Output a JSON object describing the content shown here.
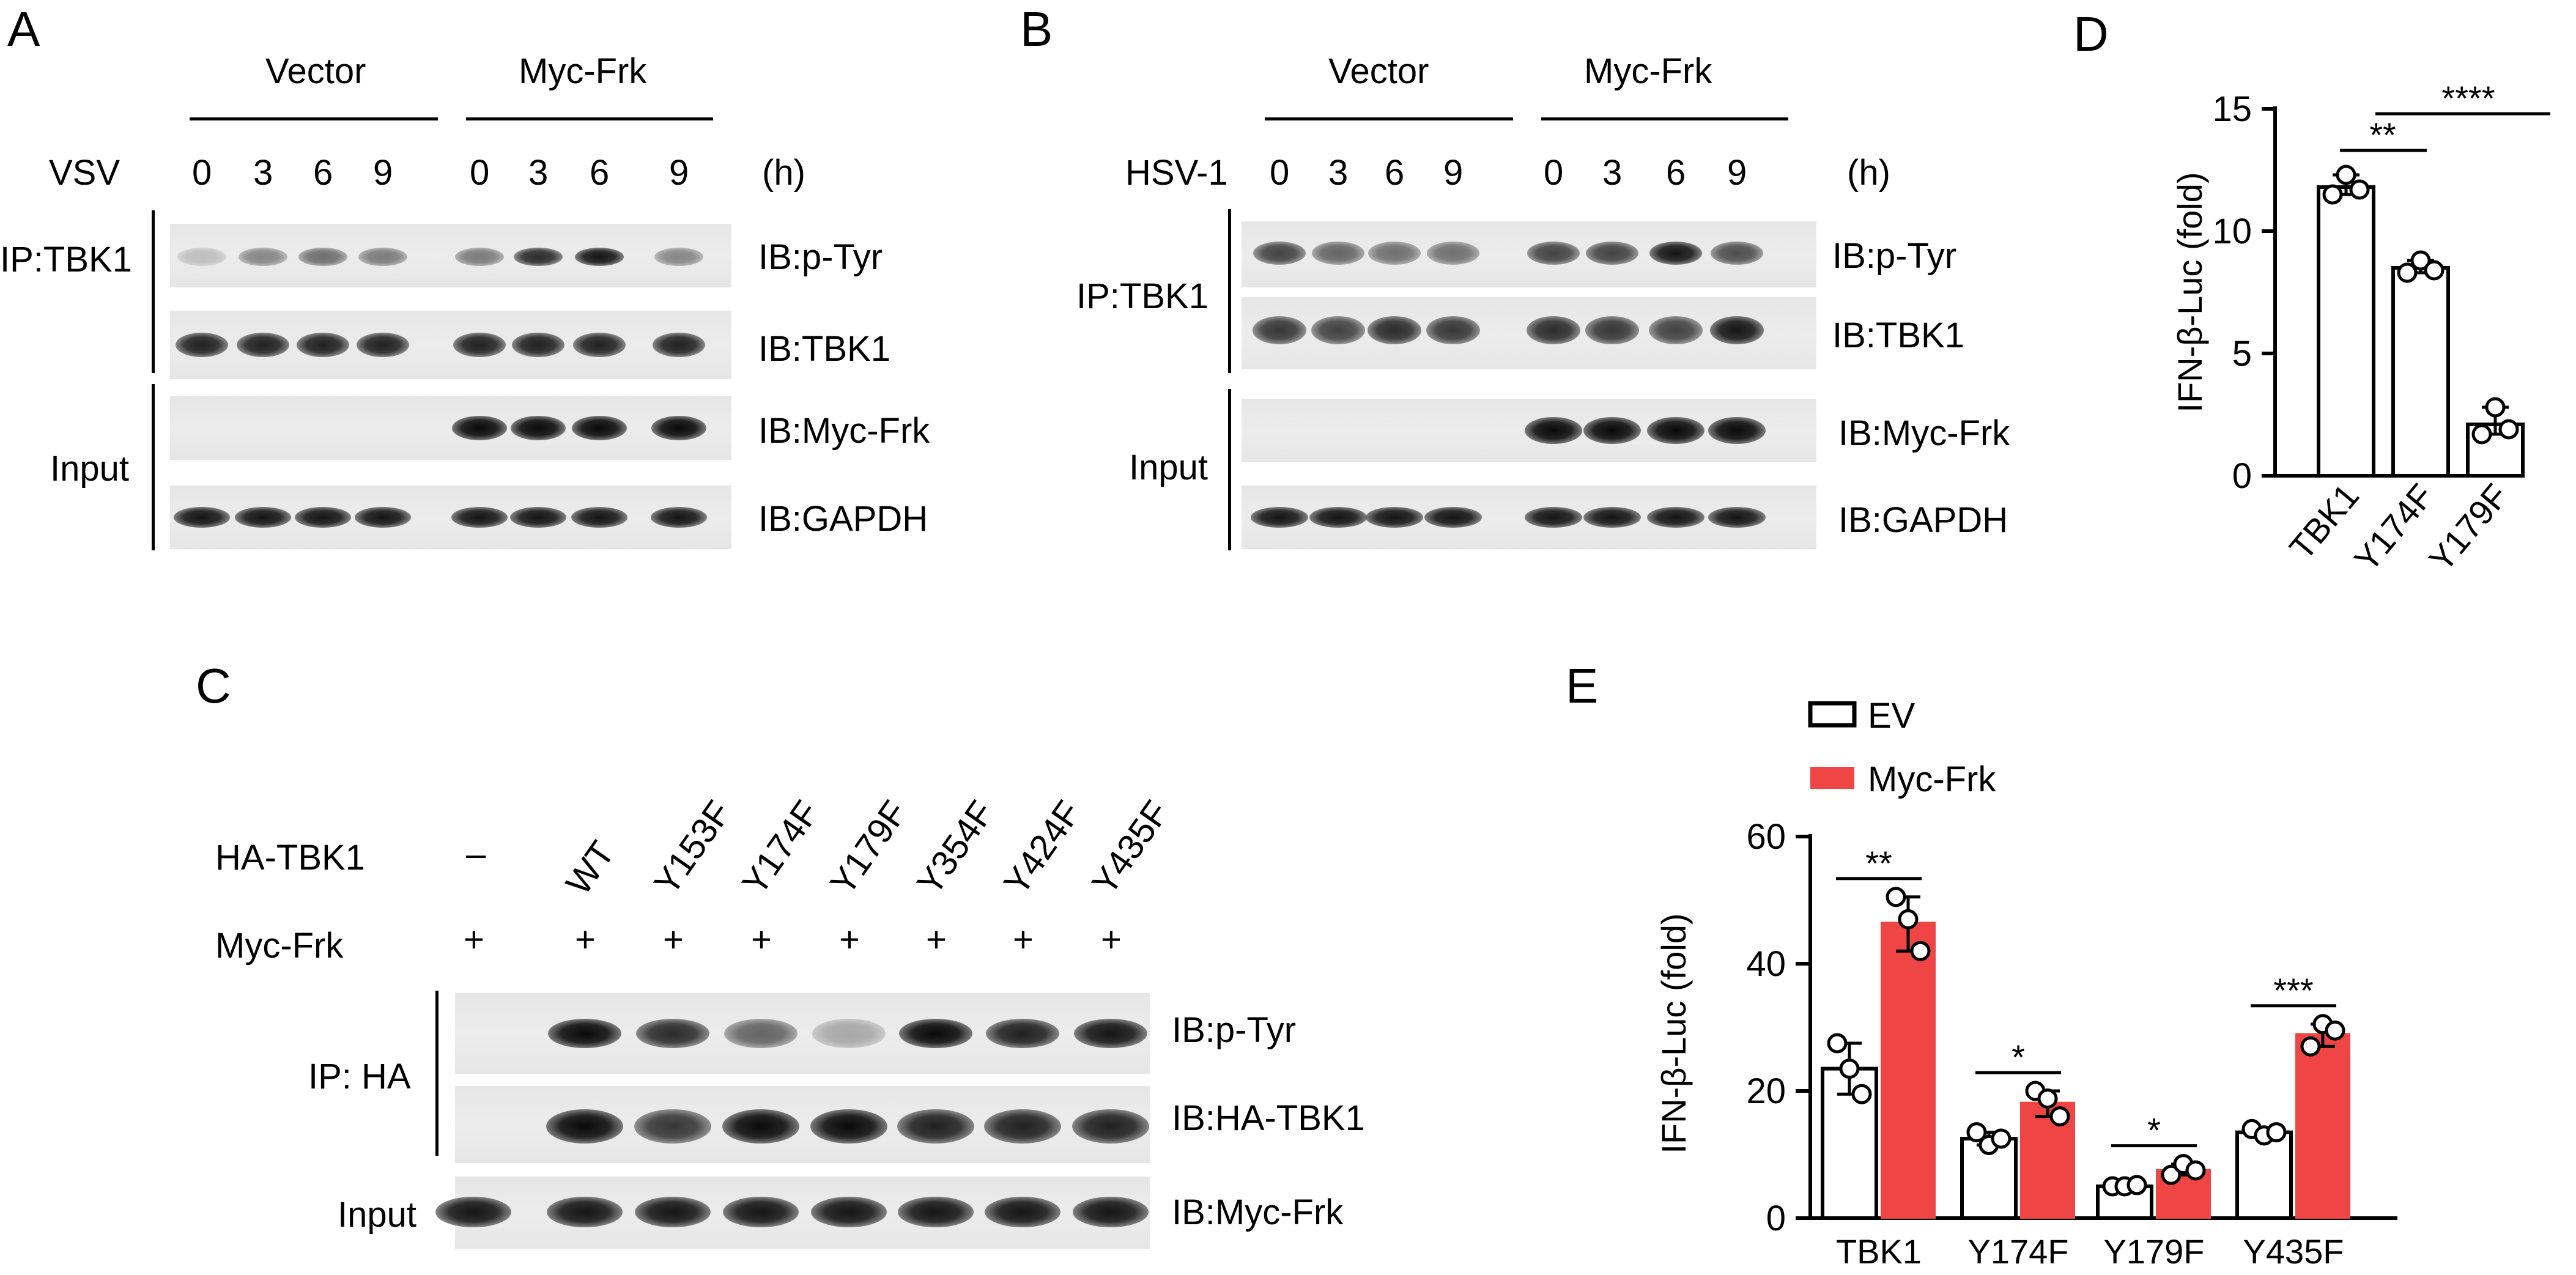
{
  "panels": {
    "A": "A",
    "B": "B",
    "C": "C",
    "D": "D",
    "E": "E"
  },
  "panelA": {
    "group_vector": "Vector",
    "group_myc": "Myc-Frk",
    "infection": "VSV",
    "times": [
      "0",
      "3",
      "6",
      "9",
      "0",
      "3",
      "6",
      "9"
    ],
    "unit": "(h)",
    "ip_label": "IP:TBK1",
    "input_label": "Input",
    "blots": [
      "IB:p-Tyr",
      "IB:TBK1",
      "IB:Myc-Frk",
      "IB:GAPDH"
    ]
  },
  "panelB": {
    "group_vector": "Vector",
    "group_myc": "Myc-Frk",
    "infection": "HSV-1",
    "times": [
      "0",
      "3",
      "6",
      "9",
      "0",
      "3",
      "6",
      "9"
    ],
    "unit": "(h)",
    "ip_label": "IP:TBK1",
    "input_label": "Input",
    "blots": [
      "IB:p-Tyr",
      "IB:TBK1",
      "IB:Myc-Frk",
      "IB:GAPDH"
    ]
  },
  "panelC": {
    "row1_label": "HA-TBK1",
    "row2_label": "Myc-Frk",
    "lanes": [
      "–",
      "WT",
      "Y153F",
      "Y174F",
      "Y179F",
      "Y354F",
      "Y424F",
      "Y435F"
    ],
    "myc_signs": [
      "+",
      "+",
      "+",
      "+",
      "+",
      "+",
      "+",
      "+"
    ],
    "ip_label": "IP: HA",
    "input_label": "Input",
    "blots": [
      "IB:p-Tyr",
      "IB:HA-TBK1",
      "IB:Myc-Frk"
    ]
  },
  "chart_data": [
    {
      "type": "bar",
      "panel": "D",
      "categories": [
        "TBK1",
        "Y174F",
        "Y179F"
      ],
      "values": [
        11.8,
        8.5,
        2.1
      ],
      "points": [
        [
          11.5,
          12.3,
          11.7
        ],
        [
          8.3,
          8.8,
          8.4
        ],
        [
          1.7,
          2.8,
          1.9
        ]
      ],
      "ylabel": "IFN-β-Luc (fold)",
      "ylim": [
        0,
        15
      ],
      "yticks": [
        0,
        5,
        10,
        15
      ],
      "significance": [
        {
          "pair": [
            "TBK1",
            "Y174F"
          ],
          "label": "**"
        },
        {
          "pair": [
            "TBK1",
            "Y179F"
          ],
          "label": "****"
        }
      ]
    },
    {
      "type": "bar",
      "panel": "E",
      "categories": [
        "TBK1",
        "Y174F",
        "Y179F",
        "Y435F"
      ],
      "series": [
        {
          "name": "EV",
          "values": [
            23.5,
            12.5,
            5.0,
            13.5
          ],
          "points": [
            [
              27.5,
              23.5,
              19.5
            ],
            [
              13.5,
              11.5,
              12.5
            ],
            [
              5.0,
              5.0,
              5.2
            ],
            [
              14.0,
              13.0,
              13.5
            ]
          ]
        },
        {
          "name": "Myc-Frk",
          "values": [
            46.5,
            18.2,
            7.6,
            29.0
          ],
          "points": [
            [
              50.5,
              47.0,
              42.0
            ],
            [
              20.0,
              18.8,
              16.0
            ],
            [
              6.8,
              8.5,
              7.5
            ],
            [
              27.0,
              30.5,
              29.5
            ]
          ]
        }
      ],
      "ylabel": "IFN-β-Luc (fold)",
      "ylim": [
        0,
        60
      ],
      "yticks": [
        0,
        20,
        40,
        60
      ],
      "significance": [
        "**",
        "*",
        "*",
        "***"
      ],
      "legend": "top-left",
      "colors": {
        "EV": "#ffffff",
        "Myc-Frk": "#f04545"
      }
    }
  ]
}
